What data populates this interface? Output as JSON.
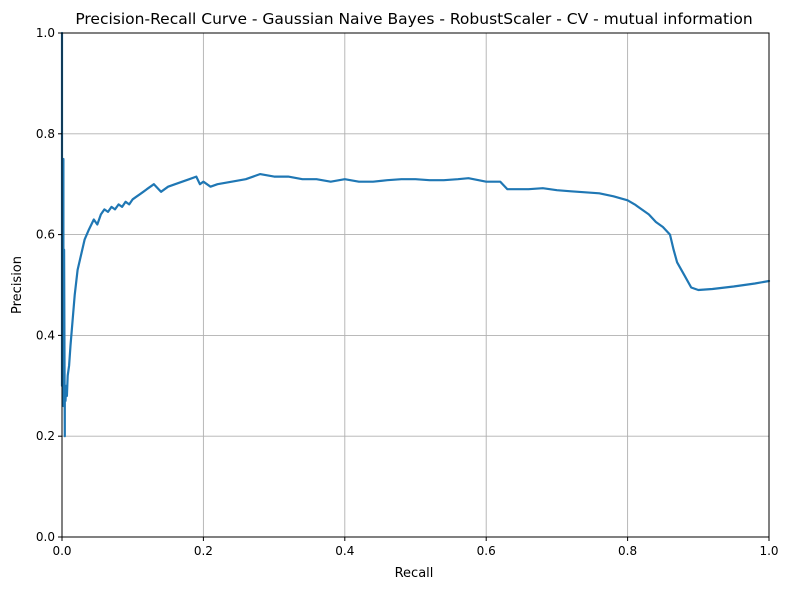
{
  "chart_data": {
    "type": "line",
    "title": "Precision-Recall Curve - Gaussian Naive Bayes - RobustScaler - CV - mutual information",
    "xlabel": "Recall",
    "ylabel": "Precision",
    "xlim": [
      0,
      1
    ],
    "ylim": [
      0,
      1
    ],
    "xticks": [
      "0.0",
      "0.2",
      "0.4",
      "0.6",
      "0.8",
      "1.0"
    ],
    "yticks": [
      "0.0",
      "0.2",
      "0.4",
      "0.6",
      "0.8",
      "1.0"
    ],
    "grid": true,
    "colors": {
      "line": "#1f77b4",
      "grid": "#b0b0b0"
    },
    "series": [
      {
        "x": [
          0.0,
          0.0,
          0.001,
          0.002,
          0.002,
          0.003,
          0.004,
          0.004,
          0.005,
          0.006,
          0.007,
          0.008,
          0.01,
          0.012,
          0.015,
          0.018,
          0.022,
          0.027,
          0.032,
          0.038,
          0.045,
          0.05,
          0.055,
          0.06,
          0.065,
          0.07,
          0.075,
          0.08,
          0.085,
          0.09,
          0.095,
          0.1,
          0.105,
          0.11,
          0.115,
          0.12,
          0.13,
          0.14,
          0.15,
          0.16,
          0.17,
          0.18,
          0.19,
          0.195,
          0.2,
          0.21,
          0.22,
          0.24,
          0.26,
          0.28,
          0.3,
          0.32,
          0.34,
          0.36,
          0.38,
          0.4,
          0.42,
          0.44,
          0.46,
          0.48,
          0.5,
          0.52,
          0.54,
          0.56,
          0.575,
          0.6,
          0.62,
          0.63,
          0.66,
          0.68,
          0.7,
          0.72,
          0.74,
          0.76,
          0.78,
          0.8,
          0.81,
          0.82,
          0.83,
          0.84,
          0.85,
          0.86,
          0.865,
          0.87,
          0.88,
          0.89,
          0.9,
          0.92,
          0.95,
          0.98,
          1.0
        ],
        "y": [
          1.0,
          0.3,
          0.5,
          0.75,
          0.26,
          0.57,
          0.2,
          0.3,
          0.27,
          0.3,
          0.28,
          0.32,
          0.34,
          0.38,
          0.43,
          0.48,
          0.53,
          0.56,
          0.59,
          0.61,
          0.63,
          0.62,
          0.64,
          0.65,
          0.645,
          0.655,
          0.65,
          0.66,
          0.655,
          0.665,
          0.66,
          0.67,
          0.675,
          0.68,
          0.685,
          0.69,
          0.7,
          0.685,
          0.695,
          0.7,
          0.705,
          0.71,
          0.715,
          0.7,
          0.705,
          0.695,
          0.7,
          0.705,
          0.71,
          0.72,
          0.715,
          0.715,
          0.71,
          0.71,
          0.705,
          0.71,
          0.705,
          0.705,
          0.708,
          0.71,
          0.71,
          0.708,
          0.708,
          0.71,
          0.712,
          0.705,
          0.705,
          0.69,
          0.69,
          0.692,
          0.688,
          0.686,
          0.684,
          0.682,
          0.676,
          0.668,
          0.66,
          0.65,
          0.64,
          0.625,
          0.615,
          0.6,
          0.57,
          0.545,
          0.52,
          0.495,
          0.49,
          0.492,
          0.497,
          0.503,
          0.508
        ]
      }
    ]
  }
}
